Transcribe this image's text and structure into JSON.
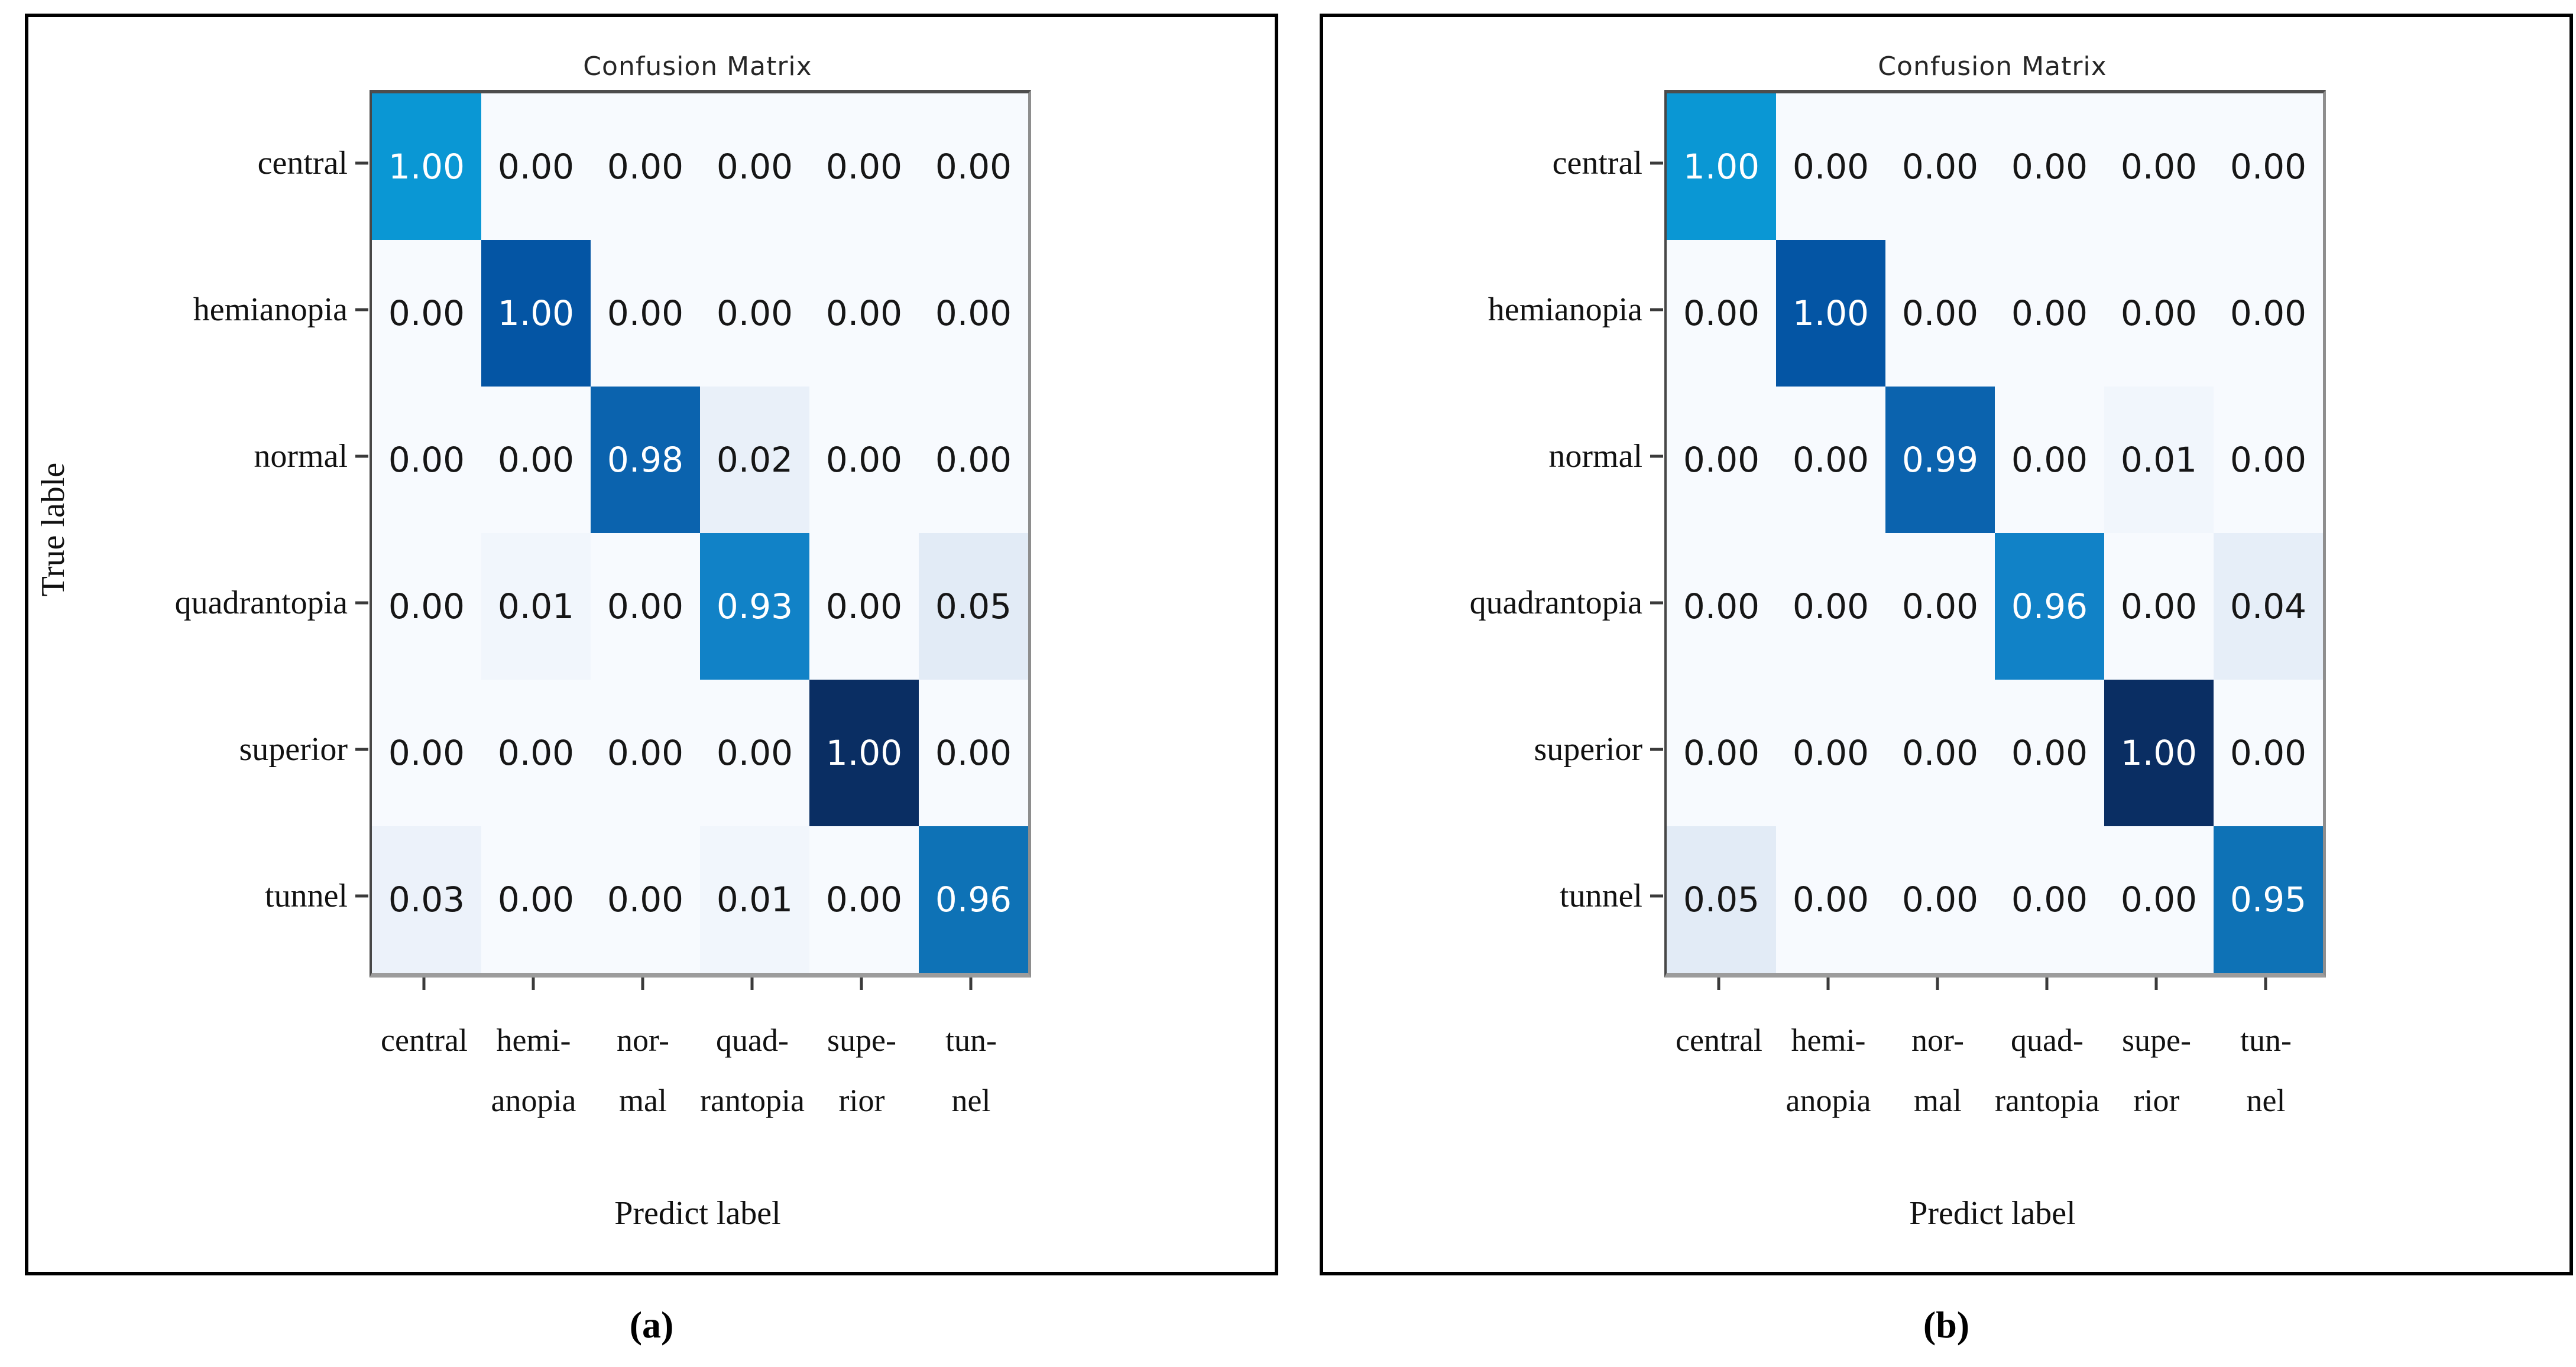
{
  "palette": {
    "zero_bg": "#f7fafe",
    "tints": {
      "0.01": "#f1f6fc",
      "0.02": "#e9f0f9",
      "0.03": "#ecf2fa",
      "0.04": "#e6eef8",
      "0.05": "#e2ebf6"
    },
    "text_dark": "#161616",
    "text_light": "#ffffff",
    "spine_dark": "#4d4d4d",
    "spine_gray": "#9c9c9c"
  },
  "chart_data": [
    {
      "type": "heatmap",
      "panel_caption": "(a)",
      "title": "Confusion Matrix",
      "xlabel": "Predict label",
      "ylabel": "True lable",
      "categories": [
        "central",
        "hemianopia",
        "normal",
        "quadrantopia",
        "superior",
        "tunnel"
      ],
      "col_labels_line1": [
        "central",
        "hemi-",
        "nor-",
        "quad-",
        "supe-",
        "tun-"
      ],
      "col_labels_line2": [
        "",
        "anopia",
        "mal",
        "rantopia",
        "rior",
        "nel"
      ],
      "value_range": [
        0,
        1
      ],
      "matrix": [
        [
          1.0,
          0.0,
          0.0,
          0.0,
          0.0,
          0.0
        ],
        [
          0.0,
          1.0,
          0.0,
          0.0,
          0.0,
          0.0
        ],
        [
          0.0,
          0.0,
          0.98,
          0.02,
          0.0,
          0.0
        ],
        [
          0.0,
          0.01,
          0.0,
          0.93,
          0.0,
          0.05
        ],
        [
          0.0,
          0.0,
          0.0,
          0.0,
          1.0,
          0.0
        ],
        [
          0.03,
          0.0,
          0.0,
          0.01,
          0.0,
          0.96
        ]
      ],
      "diag_colors": [
        "#0a97d4",
        "#0455a4",
        "#0b63ae",
        "#1182c7",
        "#0a2e63",
        "#0e72b6"
      ]
    },
    {
      "type": "heatmap",
      "panel_caption": "(b)",
      "title": "Confusion Matrix",
      "xlabel": "Predict label",
      "ylabel": "",
      "categories": [
        "central",
        "hemianopia",
        "normal",
        "quadrantopia",
        "superior",
        "tunnel"
      ],
      "col_labels_line1": [
        "central",
        "hemi-",
        "nor-",
        "quad-",
        "supe-",
        "tun-"
      ],
      "col_labels_line2": [
        "",
        "anopia",
        "mal",
        "rantopia",
        "rior",
        "nel"
      ],
      "value_range": [
        0,
        1
      ],
      "matrix": [
        [
          1.0,
          0.0,
          0.0,
          0.0,
          0.0,
          0.0
        ],
        [
          0.0,
          1.0,
          0.0,
          0.0,
          0.0,
          0.0
        ],
        [
          0.0,
          0.0,
          0.99,
          0.0,
          0.01,
          0.0
        ],
        [
          0.0,
          0.0,
          0.0,
          0.96,
          0.0,
          0.04
        ],
        [
          0.0,
          0.0,
          0.0,
          0.0,
          1.0,
          0.0
        ],
        [
          0.05,
          0.0,
          0.0,
          0.0,
          0.0,
          0.95
        ]
      ],
      "diag_colors": [
        "#0a97d4",
        "#0455a4",
        "#0b63ae",
        "#1182c7",
        "#0a2e63",
        "#0e72b6"
      ]
    }
  ]
}
